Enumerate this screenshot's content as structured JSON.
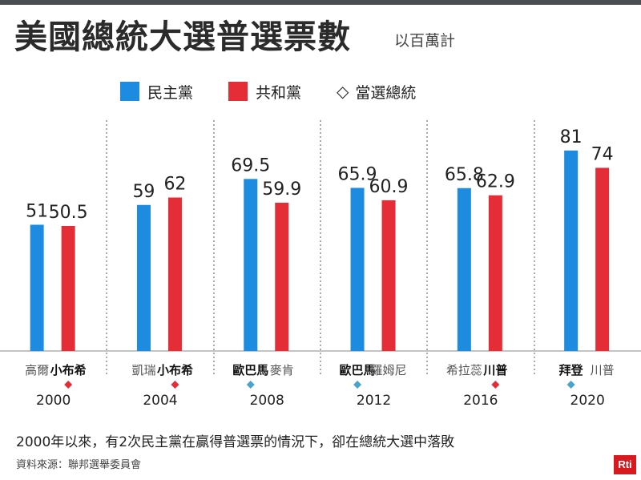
{
  "title": "美國總統大選普選票數",
  "subtitle": "以百萬計",
  "legend": {
    "dem": "民主黨",
    "rep": "共和黨",
    "winner": "當選總統"
  },
  "colors": {
    "dem": "#1d8ce0",
    "rep": "#e52d37",
    "winner_marker": "#e52d37",
    "winner_marker_alt": "#4aa3c9",
    "axis": "#888888",
    "divider": "#555555"
  },
  "chart_data": {
    "type": "bar",
    "unit": "以百萬計",
    "ylim": [
      0,
      90
    ],
    "categories": [
      "2000",
      "2004",
      "2008",
      "2012",
      "2016",
      "2020"
    ],
    "series": [
      {
        "name": "民主黨",
        "values": [
          51,
          59,
          69.5,
          65.9,
          65.8,
          81
        ],
        "labels": [
          "51",
          "59",
          "69.5",
          "65.9",
          "65.8",
          "81"
        ],
        "candidates": [
          "高爾",
          "凱瑞",
          "歐巴馬",
          "歐巴馬",
          "希拉蕊",
          "拜登"
        ]
      },
      {
        "name": "共和黨",
        "values": [
          50.5,
          62,
          59.9,
          60.9,
          62.9,
          74
        ],
        "labels": [
          "50.5",
          "62",
          "59.9",
          "60.9",
          "62.9",
          "74"
        ],
        "candidates": [
          "小布希",
          "小布希",
          "麥肯",
          "羅姆尼",
          "川普",
          "川普"
        ]
      }
    ],
    "winners": [
      "共和黨",
      "共和黨",
      "民主黨",
      "民主黨",
      "共和黨",
      "民主黨"
    ]
  },
  "footnote": "2000年以來，有2次民主黨在贏得普選票的情況下，卻在總統大選中落敗",
  "source": "資料來源：聯邦選舉委員會",
  "logo": "Rti"
}
